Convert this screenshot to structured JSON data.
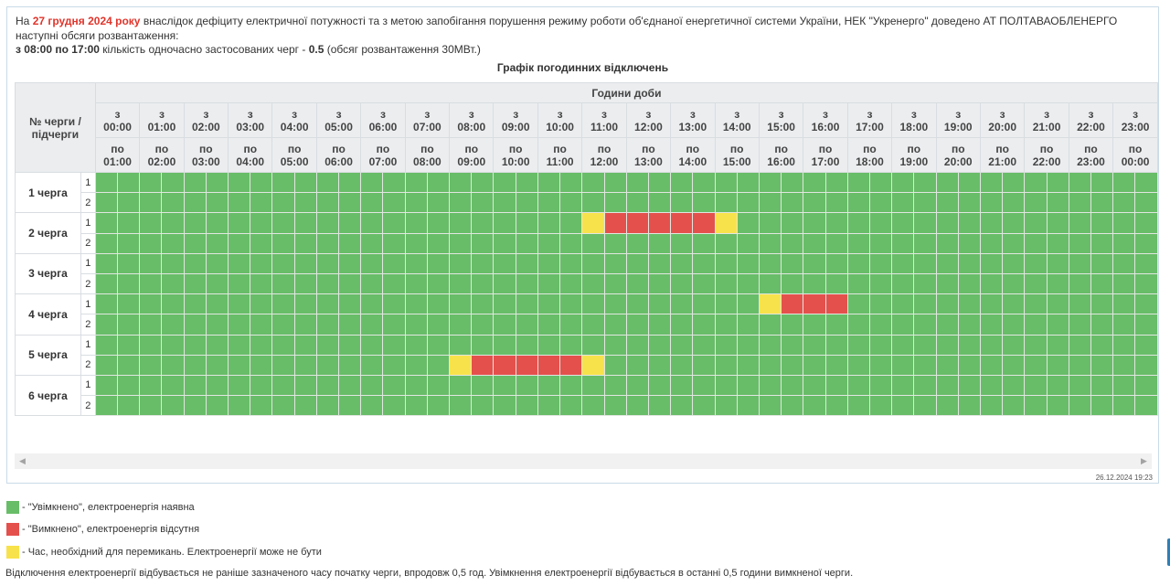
{
  "notice": {
    "prefix": "На ",
    "date": "27 грудня 2024 року",
    "text1": " внаслідок дефіциту електричної потужності та з метою запобігання порушення режиму роботи об'єднаної енергетичної системи України, НЕК \"Укренерго\" доведено АТ ПОЛТАВАОБЛЕНЕРГО наступні обсяги розвантаження:",
    "range": "з 08:00 по 17:00",
    "text2": " кількість одночасно застосованих черг - ",
    "queues_count": "0.5",
    "text3": " (обсяг розвантаження 30МВт.)"
  },
  "grid_title": "Графік погодинних відключень",
  "table": {
    "corner_label": "№ черги / підчерги",
    "hours_header": "Години доби",
    "from_prefix": "з",
    "to_prefix": "по",
    "from_times": [
      "00:00",
      "01:00",
      "02:00",
      "03:00",
      "04:00",
      "05:00",
      "06:00",
      "07:00",
      "08:00",
      "09:00",
      "10:00",
      "11:00",
      "12:00",
      "13:00",
      "14:00",
      "15:00",
      "16:00",
      "17:00",
      "18:00",
      "19:00",
      "20:00",
      "21:00",
      "22:00",
      "23:00"
    ],
    "to_times": [
      "01:00",
      "02:00",
      "03:00",
      "04:00",
      "05:00",
      "06:00",
      "07:00",
      "08:00",
      "09:00",
      "10:00",
      "11:00",
      "12:00",
      "13:00",
      "14:00",
      "15:00",
      "16:00",
      "17:00",
      "18:00",
      "19:00",
      "20:00",
      "21:00",
      "22:00",
      "23:00",
      "00:00"
    ],
    "queues": [
      {
        "label": "1 черга",
        "subqueues": [
          {
            "num": "1",
            "cells": "gggggggggggggggggggggggggggggggggggggggggggggggg"
          },
          {
            "num": "2",
            "cells": "gggggggggggggggggggggggggggggggggggggggggggggggg"
          }
        ]
      },
      {
        "label": "2 черга",
        "subqueues": [
          {
            "num": "1",
            "cells": "ggggggggggggggggggggggyrrrrryggggggggggggggggggg"
          },
          {
            "num": "2",
            "cells": "gggggggggggggggggggggggggggggggggggggggggggggggg"
          }
        ]
      },
      {
        "label": "3 черга",
        "subqueues": [
          {
            "num": "1",
            "cells": "gggggggggggggggggggggggggggggggggggggggggggggggg"
          },
          {
            "num": "2",
            "cells": "gggggggggggggggggggggggggggggggggggggggggggggggg"
          }
        ]
      },
      {
        "label": "4 черга",
        "subqueues": [
          {
            "num": "1",
            "cells": "ggggggggggggggggggggggggggggggyrrrgggggggggggggg"
          },
          {
            "num": "2",
            "cells": "gggggggggggggggggggggggggggggggggggggggggggggggg"
          }
        ]
      },
      {
        "label": "5 черга",
        "subqueues": [
          {
            "num": "1",
            "cells": "gggggggggggggggggggggggggggggggggggggggggggggggg"
          },
          {
            "num": "2",
            "cells": "ggggggggggggggggyrrrrryggggggggggggggggggggggggg"
          }
        ]
      },
      {
        "label": "6 черга",
        "subqueues": [
          {
            "num": "1",
            "cells": "gggggggggggggggggggggggggggggggggggggggggggggggg"
          },
          {
            "num": "2",
            "cells": "gggggggggggggggggggggggggggggggggggggggggggggggg"
          }
        ]
      }
    ]
  },
  "colors": {
    "on": "#68bd68",
    "off": "#e4514d",
    "switch": "#f8e24b"
  },
  "updated": "26.12.2024 19:23",
  "legend": [
    {
      "state": "on",
      "text": "- \"Увімкнено\", електроенергія наявна"
    },
    {
      "state": "off",
      "text": "- \"Вимкнено\", електроенергія відсутня"
    },
    {
      "state": "switch",
      "text": "- Час, необхідний для перемикань. Електроенергії може не бути"
    }
  ],
  "footnote": "Відключення електроенергії відбувається не раніше зазначеного часу початку черги, впродовж 0,5 год. Увімкнення електроенергії відбувається в останні 0,5 години вимкненої черги."
}
